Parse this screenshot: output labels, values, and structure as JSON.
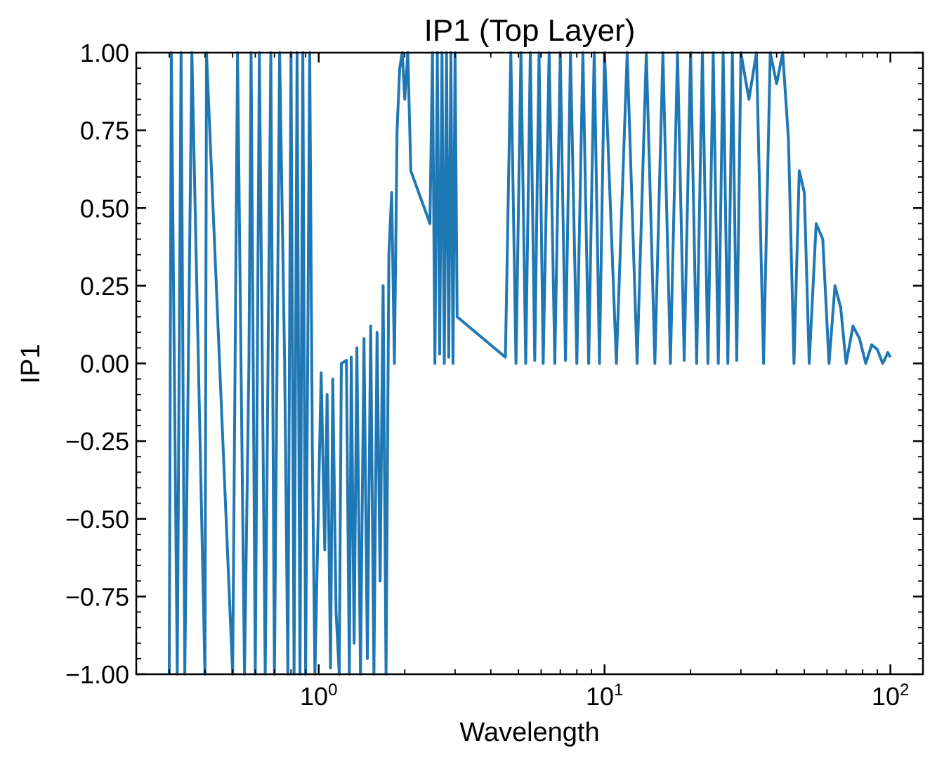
{
  "chart_data": {
    "type": "line",
    "title": "IP1 (Top Layer)",
    "xlabel": "Wavelength",
    "ylabel": "IP1",
    "xscale": "log",
    "xlim": [
      0.23,
      130
    ],
    "ylim": [
      -1.0,
      1.0
    ],
    "grid": false,
    "legend": "none",
    "line_color": "#1f77b4",
    "x_ticks": [
      {
        "base": "10",
        "exp": "0",
        "value": 1
      },
      {
        "base": "10",
        "exp": "1",
        "value": 10
      },
      {
        "base": "10",
        "exp": "2",
        "value": 100
      }
    ],
    "y_ticks": [
      "1.00",
      "0.75",
      "0.50",
      "0.25",
      "0.00",
      "−0.25",
      "−0.50",
      "−0.75",
      "−1.00"
    ],
    "y_tick_values": [
      1.0,
      0.75,
      0.5,
      0.25,
      0.0,
      -0.25,
      -0.5,
      -0.75,
      -1.0
    ],
    "series": [
      {
        "x": [
          0.3,
          0.305,
          0.32,
          0.33,
          0.34,
          0.36,
          0.4,
          0.405,
          0.5,
          0.52,
          0.55,
          0.57,
          0.58,
          0.6,
          0.62,
          0.65,
          0.68,
          0.7,
          0.73,
          0.76,
          0.78,
          0.8,
          0.82,
          0.84,
          0.86,
          0.88,
          0.9,
          0.93,
          0.95,
          0.97,
          1.02,
          1.05,
          1.07,
          1.1,
          1.12,
          1.15,
          1.18,
          1.2,
          1.25,
          1.28,
          1.3,
          1.33,
          1.36,
          1.4,
          1.44,
          1.48,
          1.52,
          1.56,
          1.6,
          1.64,
          1.68,
          1.72,
          1.76,
          1.8,
          1.84,
          1.88,
          1.92,
          1.96,
          2.0,
          2.05,
          2.1,
          2.45,
          2.5,
          2.55,
          2.6,
          2.65,
          2.7,
          2.75,
          2.8,
          2.85,
          2.9,
          2.95,
          3.0,
          3.05,
          4.5,
          4.7,
          4.9,
          5.1,
          5.3,
          5.5,
          5.7,
          5.9,
          6.1,
          6.4,
          6.7,
          7.0,
          7.3,
          7.6,
          8.0,
          8.4,
          8.8,
          9.2,
          9.6,
          10.0,
          11.0,
          12.0,
          13.0,
          14.0,
          15.0,
          16.0,
          17.0,
          18.0,
          19.0,
          20.0,
          21.0,
          22.0,
          23.0,
          24.0,
          25.0,
          26.0,
          27.0,
          28.0,
          29.0,
          30.0,
          32.0,
          34.0,
          36.0,
          38.0,
          40.0,
          42.0,
          44.0,
          46.0,
          48.0,
          50.0,
          52.0,
          55.0,
          58.0,
          61.0,
          64.0,
          67.0,
          70.0,
          74.0,
          78.0,
          82.0,
          86.0,
          90.0,
          94.0,
          98.0,
          100.0
        ],
        "y": [
          -1.0,
          1.0,
          -1.0,
          1.0,
          -1.0,
          1.0,
          -1.0,
          1.0,
          -1.0,
          1.0,
          -1.0,
          0.0,
          1.0,
          -1.0,
          1.0,
          -1.0,
          1.0,
          -1.0,
          1.0,
          0.0,
          -1.0,
          1.0,
          -1.0,
          1.0,
          -1.0,
          1.0,
          -1.0,
          1.0,
          -0.28,
          -1.0,
          -0.03,
          -0.6,
          -0.1,
          -0.98,
          -0.05,
          -0.8,
          -1.0,
          0.0,
          0.01,
          -1.0,
          0.02,
          -0.9,
          0.05,
          -1.0,
          0.08,
          -0.95,
          0.12,
          -1.0,
          0.1,
          -0.7,
          0.25,
          -1.0,
          0.35,
          0.55,
          0.0,
          0.75,
          0.95,
          1.0,
          0.85,
          1.0,
          0.62,
          0.45,
          1.0,
          0.0,
          1.0,
          0.03,
          1.0,
          0.0,
          1.0,
          0.02,
          1.0,
          0.0,
          1.0,
          0.15,
          0.02,
          1.0,
          0.0,
          1.0,
          0.0,
          1.0,
          0.01,
          1.0,
          0.0,
          1.0,
          0.0,
          1.0,
          0.01,
          1.0,
          0.0,
          1.0,
          0.0,
          1.0,
          0.0,
          1.0,
          0.0,
          1.0,
          0.0,
          1.0,
          0.0,
          1.0,
          0.0,
          1.0,
          0.01,
          1.0,
          0.0,
          1.0,
          0.0,
          1.0,
          0.0,
          1.0,
          0.0,
          1.0,
          0.01,
          1.0,
          0.85,
          1.0,
          0.0,
          1.0,
          0.9,
          1.0,
          0.72,
          0.0,
          0.62,
          0.55,
          0.0,
          0.45,
          0.4,
          0.0,
          0.25,
          0.18,
          0.0,
          0.12,
          0.08,
          0.0,
          0.06,
          0.045,
          0.0,
          0.035,
          0.02
        ]
      }
    ]
  }
}
